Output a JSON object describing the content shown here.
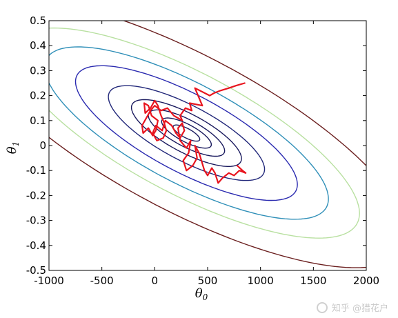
{
  "chart_data": {
    "type": "line",
    "title": "",
    "xlabel_symbol": "θ",
    "xlabel_subscript": "0",
    "ylabel_symbol": "θ",
    "ylabel_subscript": "1",
    "xlim": [
      -1000,
      2000
    ],
    "ylim": [
      -0.5,
      0.5
    ],
    "xticks": [
      -1000,
      -500,
      0,
      500,
      1000,
      1500,
      2000
    ],
    "yticks": [
      -0.5,
      -0.4,
      -0.3,
      -0.2,
      -0.1,
      0,
      0.1,
      0.2,
      0.3,
      0.4,
      0.5
    ],
    "xtick_labels": [
      "-1000",
      "-500",
      "0",
      "500",
      "1000",
      "1500",
      "2000"
    ],
    "ytick_labels": [
      "-0.5",
      "-0.4",
      "-0.3",
      "-0.2",
      "-0.1",
      "0",
      "0.1",
      "0.2",
      "0.3",
      "0.4",
      "0.5"
    ],
    "grid": false,
    "contours": {
      "center": [
        300,
        0.05
      ],
      "levels": [
        {
          "semi_major": 150,
          "color": "#1a1a5e"
        },
        {
          "semi_major": 280,
          "color": "#1a1a5e"
        },
        {
          "semi_major": 430,
          "color": "#1a1a5e"
        },
        {
          "semi_major": 620,
          "color": "#1a1a5e"
        },
        {
          "semi_major": 880,
          "color": "#22287a"
        },
        {
          "semi_major": 1250,
          "color": "#2a2ab0"
        },
        {
          "semi_major": 1600,
          "color": "#2f8fb8"
        },
        {
          "semi_major": 1950,
          "color": "#b8e0a0"
        },
        {
          "semi_major": 2500,
          "color": "#6b1f1f"
        }
      ]
    },
    "series": [
      {
        "type": "trajectory",
        "color": "#e8141e",
        "x": [
          850,
          770,
          700,
          620,
          560,
          520,
          380,
          450,
          330,
          350,
          290,
          240,
          260,
          180,
          120,
          60,
          0,
          -40,
          -80,
          -120,
          -110,
          -60,
          -20,
          10,
          30,
          -30,
          -60,
          -100,
          -90,
          -40,
          0,
          30,
          60,
          90,
          110,
          80,
          20,
          -20,
          10,
          70,
          100,
          160,
          200,
          240,
          280,
          260,
          220,
          240,
          300,
          340,
          320,
          270,
          300,
          360,
          400,
          380,
          420,
          470,
          500,
          540,
          570,
          600,
          640,
          700,
          750,
          800,
          860,
          830,
          780
        ],
        "y": [
          0.25,
          0.24,
          0.23,
          0.22,
          0.21,
          0.2,
          0.23,
          0.16,
          0.17,
          0.14,
          0.15,
          0.12,
          0.1,
          0.12,
          0.15,
          0.14,
          0.16,
          0.14,
          0.11,
          0.08,
          0.05,
          0.07,
          0.04,
          0.06,
          0.1,
          0.12,
          0.16,
          0.17,
          0.13,
          0.15,
          0.18,
          0.16,
          0.12,
          0.09,
          0.06,
          0.03,
          0.02,
          0.05,
          0.08,
          0.06,
          0.1,
          0.08,
          0.05,
          0.03,
          0.06,
          0.09,
          0.07,
          0.02,
          -0.01,
          0.02,
          -0.03,
          -0.06,
          -0.1,
          -0.08,
          -0.05,
          0.0,
          -0.03,
          -0.1,
          -0.12,
          -0.09,
          -0.11,
          -0.15,
          -0.13,
          -0.11,
          -0.12,
          -0.1,
          -0.11,
          -0.1,
          -0.08
        ]
      }
    ]
  },
  "watermark": {
    "text": "知乎 @猎花户"
  }
}
